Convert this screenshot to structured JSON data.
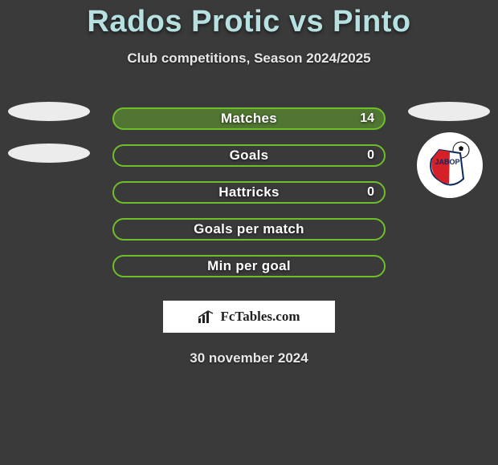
{
  "title": "Rados Protic vs Pinto",
  "subtitle": "Club competitions, Season 2024/2025",
  "date": "30 november 2024",
  "logo_text": "FcTables.com",
  "colors": {
    "title": "#b7e0e0",
    "pill_green_border": "#6fbf2a",
    "pill_green_fill": "#6fbf2a",
    "pill_green_fill_alpha": 0.45,
    "ellipse": "#ececec",
    "bg": "#3a3a3a"
  },
  "rows": [
    {
      "label": "Matches",
      "value": "14",
      "filled": true,
      "left_ellipse": true,
      "right_ellipse": true,
      "right_badge": false
    },
    {
      "label": "Goals",
      "value": "0",
      "filled": false,
      "left_ellipse": true,
      "right_ellipse": false,
      "right_badge": true
    },
    {
      "label": "Hattricks",
      "value": "0",
      "filled": false,
      "left_ellipse": false,
      "right_ellipse": false,
      "right_badge": false
    },
    {
      "label": "Goals per match",
      "value": "",
      "filled": false,
      "left_ellipse": false,
      "right_ellipse": false,
      "right_badge": false
    },
    {
      "label": "Min per goal",
      "value": "",
      "filled": false,
      "left_ellipse": false,
      "right_ellipse": false,
      "right_badge": false
    }
  ],
  "badge": {
    "name": "javor-ivanjica-badge",
    "shield_fill_left": "#d62027",
    "shield_fill_right": "#ffffff",
    "shield_border": "#0a2a5c",
    "ball_bg": "#ffffff"
  }
}
